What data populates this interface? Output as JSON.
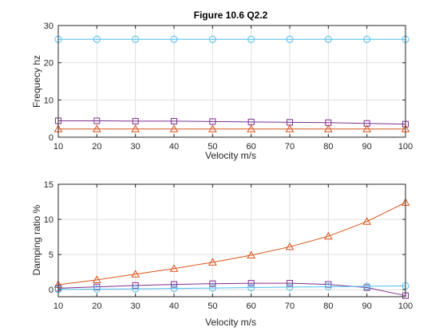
{
  "chart_data": [
    {
      "type": "line",
      "title": "Figure 10.6 Q2.2",
      "xlabel": "Velocity m/s",
      "ylabel": "Frequecy hz",
      "xlim": [
        10,
        100
      ],
      "ylim": [
        0,
        30
      ],
      "xticks": [
        10,
        20,
        30,
        40,
        50,
        60,
        70,
        80,
        90,
        100
      ],
      "yticks": [
        0,
        10,
        20,
        30
      ],
      "grid": true,
      "x": [
        10,
        20,
        30,
        40,
        50,
        60,
        70,
        80,
        90,
        100
      ],
      "series": [
        {
          "color": "#4DBEEE",
          "marker": "circle",
          "values": [
            26.3,
            26.3,
            26.3,
            26.3,
            26.3,
            26.3,
            26.3,
            26.3,
            26.3,
            26.3
          ]
        },
        {
          "color": "#7E2F8E",
          "marker": "square",
          "values": [
            4.4,
            4.4,
            4.3,
            4.3,
            4.2,
            4.1,
            4.0,
            3.9,
            3.7,
            3.5
          ]
        },
        {
          "color": "#D95319",
          "marker": "triangle",
          "values": [
            2.2,
            2.2,
            2.2,
            2.2,
            2.2,
            2.2,
            2.2,
            2.2,
            2.2,
            2.2
          ]
        }
      ]
    },
    {
      "type": "line",
      "title": "",
      "xlabel": "Velocity m/s",
      "ylabel": "Damping ratio %",
      "xlim": [
        10,
        100
      ],
      "ylim": [
        -1,
        15
      ],
      "xticks": [
        10,
        20,
        30,
        40,
        50,
        60,
        70,
        80,
        90,
        100
      ],
      "yticks": [
        0,
        5,
        10,
        15
      ],
      "grid": true,
      "x": [
        10,
        20,
        30,
        40,
        50,
        60,
        70,
        80,
        90,
        100
      ],
      "series": [
        {
          "color": "#D95319",
          "marker": "triangle",
          "values": [
            0.7,
            1.4,
            2.2,
            3.0,
            3.9,
            4.9,
            6.1,
            7.6,
            9.7,
            12.4
          ]
        },
        {
          "color": "#7E2F8E",
          "marker": "square",
          "values": [
            0.2,
            0.4,
            0.6,
            0.75,
            0.85,
            0.92,
            0.92,
            0.75,
            0.3,
            -0.85
          ]
        },
        {
          "color": "#4DBEEE",
          "marker": "circle",
          "values": [
            0.05,
            0.08,
            0.12,
            0.18,
            0.24,
            0.3,
            0.36,
            0.42,
            0.48,
            0.54
          ]
        }
      ]
    }
  ]
}
